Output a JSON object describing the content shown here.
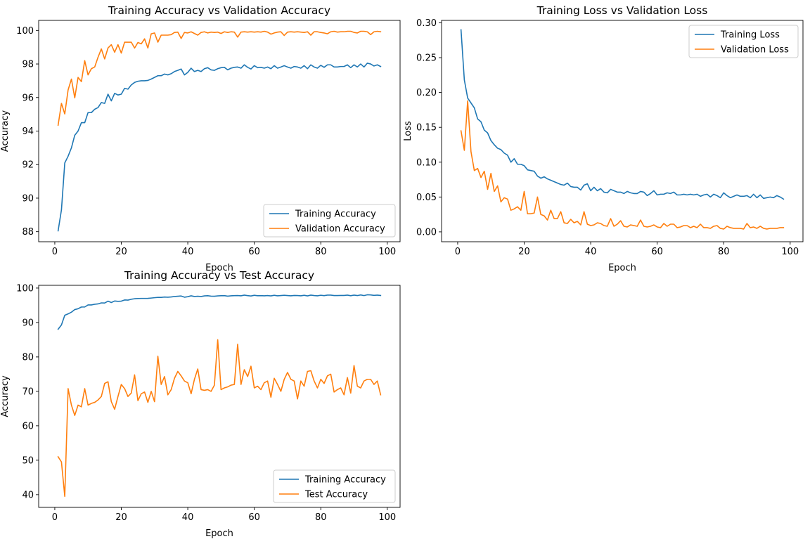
{
  "chart_data": [
    {
      "type": "line",
      "title": "Training Accuracy vs Validation Accuracy",
      "xlabel": "Epoch",
      "ylabel": "Accuracy",
      "xlim": [
        -4.85,
        103.85
      ],
      "ylim": [
        87.4,
        100.6
      ],
      "xticks": [
        0,
        20,
        40,
        60,
        80,
        100
      ],
      "yticks": [
        88,
        90,
        92,
        94,
        96,
        98,
        100
      ],
      "legend": "lower right",
      "x": [
        1,
        2,
        3,
        4,
        5,
        6,
        7,
        8,
        9,
        10,
        11,
        12,
        13,
        14,
        15,
        16,
        17,
        18,
        19,
        20,
        21,
        22,
        23,
        24,
        25,
        26,
        27,
        28,
        29,
        30,
        31,
        32,
        33,
        34,
        35,
        36,
        37,
        38,
        39,
        40,
        41,
        42,
        43,
        44,
        45,
        46,
        47,
        48,
        49,
        50,
        51,
        52,
        53,
        54,
        55,
        56,
        57,
        58,
        59,
        60,
        61,
        62,
        63,
        64,
        65,
        66,
        67,
        68,
        69,
        70,
        71,
        72,
        73,
        74,
        75,
        76,
        77,
        78,
        79,
        80,
        81,
        82,
        83,
        84,
        85,
        86,
        87,
        88,
        89,
        90,
        91,
        92,
        93,
        94,
        95,
        96,
        97,
        98
      ],
      "series": [
        {
          "name": "Training Accuracy",
          "color": "#1f77b4",
          "values": [
            88.05,
            89.3,
            92.1,
            92.5,
            93.0,
            93.75,
            94.0,
            94.5,
            94.5,
            95.1,
            95.1,
            95.3,
            95.4,
            95.7,
            95.65,
            96.2,
            95.8,
            96.25,
            96.15,
            96.2,
            96.55,
            96.5,
            96.75,
            96.9,
            96.97,
            97.0,
            97.0,
            97.02,
            97.1,
            97.2,
            97.3,
            97.3,
            97.4,
            97.35,
            97.42,
            97.55,
            97.62,
            97.7,
            97.35,
            97.5,
            97.75,
            97.55,
            97.62,
            97.55,
            97.72,
            97.78,
            97.65,
            97.62,
            97.72,
            97.78,
            97.8,
            97.65,
            97.75,
            97.8,
            97.82,
            97.75,
            97.95,
            97.8,
            97.7,
            97.9,
            97.78,
            97.8,
            97.75,
            97.82,
            97.72,
            97.9,
            97.75,
            97.82,
            97.9,
            97.82,
            97.75,
            97.85,
            97.82,
            97.75,
            97.9,
            97.72,
            97.95,
            97.82,
            97.75,
            97.92,
            97.8,
            97.95,
            97.95,
            97.82,
            97.82,
            97.85,
            97.85,
            97.95,
            97.78,
            97.95,
            97.82,
            98.0,
            97.82,
            98.05,
            98.0,
            97.88,
            97.95,
            97.85
          ]
        },
        {
          "name": "Validation Accuracy",
          "color": "#ff7f0e",
          "values": [
            94.35,
            95.65,
            95.02,
            96.45,
            97.1,
            95.98,
            97.2,
            96.95,
            98.2,
            97.35,
            97.72,
            97.82,
            98.4,
            98.9,
            98.3,
            98.95,
            99.15,
            98.7,
            99.15,
            98.65,
            99.3,
            99.3,
            99.3,
            98.95,
            99.28,
            99.2,
            99.5,
            98.95,
            99.8,
            99.85,
            99.3,
            99.72,
            99.72,
            99.72,
            99.75,
            99.88,
            99.9,
            99.52,
            99.88,
            99.85,
            99.92,
            99.82,
            99.72,
            99.88,
            99.92,
            99.85,
            99.9,
            99.88,
            99.9,
            99.82,
            99.92,
            99.88,
            99.92,
            99.9,
            99.6,
            99.9,
            99.92,
            99.9,
            99.92,
            99.9,
            99.92,
            99.9,
            99.95,
            99.9,
            99.78,
            99.85,
            99.9,
            99.92,
            99.7,
            99.9,
            99.92,
            99.9,
            99.92,
            99.9,
            99.88,
            99.92,
            99.72,
            99.92,
            99.92,
            99.88,
            99.85,
            99.8,
            99.92,
            99.95,
            99.9,
            99.92,
            99.92,
            99.95,
            99.95,
            99.88,
            99.85,
            99.95,
            99.95,
            99.92,
            99.75,
            99.92,
            99.95,
            99.92
          ]
        }
      ]
    },
    {
      "type": "line",
      "title": "Training Loss vs Validation Loss",
      "xlabel": "Epoch",
      "ylabel": "Loss",
      "xlim": [
        -4.85,
        103.85
      ],
      "ylim": [
        -0.0142,
        0.3035
      ],
      "xticks": [
        0,
        20,
        40,
        60,
        80,
        100
      ],
      "yticks": [
        0.0,
        0.05,
        0.1,
        0.15,
        0.2,
        0.25,
        0.3
      ],
      "ytick_labels": [
        "0.00",
        "0.05",
        "0.10",
        "0.15",
        "0.20",
        "0.25",
        "0.30"
      ],
      "legend": "upper right",
      "x": [
        1,
        2,
        3,
        4,
        5,
        6,
        7,
        8,
        9,
        10,
        11,
        12,
        13,
        14,
        15,
        16,
        17,
        18,
        19,
        20,
        21,
        22,
        23,
        24,
        25,
        26,
        27,
        28,
        29,
        30,
        31,
        32,
        33,
        34,
        35,
        36,
        37,
        38,
        39,
        40,
        41,
        42,
        43,
        44,
        45,
        46,
        47,
        48,
        49,
        50,
        51,
        52,
        53,
        54,
        55,
        56,
        57,
        58,
        59,
        60,
        61,
        62,
        63,
        64,
        65,
        66,
        67,
        68,
        69,
        70,
        71,
        72,
        73,
        74,
        75,
        76,
        77,
        78,
        79,
        80,
        81,
        82,
        83,
        84,
        85,
        86,
        87,
        88,
        89,
        90,
        91,
        92,
        93,
        94,
        95,
        96,
        97,
        98
      ],
      "series": [
        {
          "name": "Training Loss",
          "color": "#1f77b4",
          "values": [
            0.29,
            0.218,
            0.192,
            0.185,
            0.178,
            0.162,
            0.158,
            0.146,
            0.142,
            0.131,
            0.125,
            0.12,
            0.118,
            0.113,
            0.11,
            0.1,
            0.105,
            0.097,
            0.097,
            0.095,
            0.089,
            0.088,
            0.087,
            0.08,
            0.077,
            0.079,
            0.076,
            0.074,
            0.072,
            0.07,
            0.068,
            0.067,
            0.07,
            0.065,
            0.064,
            0.064,
            0.06,
            0.067,
            0.069,
            0.059,
            0.064,
            0.059,
            0.062,
            0.057,
            0.056,
            0.061,
            0.059,
            0.057,
            0.057,
            0.055,
            0.058,
            0.056,
            0.055,
            0.055,
            0.058,
            0.057,
            0.052,
            0.055,
            0.059,
            0.053,
            0.054,
            0.054,
            0.056,
            0.055,
            0.057,
            0.053,
            0.053,
            0.054,
            0.053,
            0.054,
            0.053,
            0.054,
            0.051,
            0.053,
            0.054,
            0.05,
            0.054,
            0.052,
            0.049,
            0.056,
            0.052,
            0.049,
            0.051,
            0.053,
            0.051,
            0.051,
            0.052,
            0.049,
            0.054,
            0.049,
            0.053,
            0.048,
            0.049,
            0.05,
            0.049,
            0.052,
            0.05,
            0.047
          ]
        },
        {
          "name": "Validation Loss",
          "color": "#ff7f0e",
          "values": [
            0.145,
            0.117,
            0.188,
            0.115,
            0.088,
            0.091,
            0.078,
            0.087,
            0.061,
            0.084,
            0.058,
            0.066,
            0.043,
            0.049,
            0.047,
            0.031,
            0.033,
            0.036,
            0.031,
            0.058,
            0.026,
            0.026,
            0.027,
            0.05,
            0.025,
            0.023,
            0.017,
            0.031,
            0.019,
            0.019,
            0.029,
            0.013,
            0.012,
            0.018,
            0.013,
            0.015,
            0.01,
            0.029,
            0.011,
            0.009,
            0.01,
            0.013,
            0.012,
            0.009,
            0.008,
            0.019,
            0.008,
            0.011,
            0.016,
            0.008,
            0.007,
            0.01,
            0.009,
            0.008,
            0.017,
            0.008,
            0.007,
            0.008,
            0.01,
            0.007,
            0.006,
            0.012,
            0.008,
            0.011,
            0.011,
            0.006,
            0.007,
            0.009,
            0.009,
            0.006,
            0.008,
            0.006,
            0.011,
            0.006,
            0.006,
            0.005,
            0.008,
            0.009,
            0.005,
            0.004,
            0.008,
            0.006,
            0.005,
            0.005,
            0.005,
            0.004,
            0.012,
            0.006,
            0.007,
            0.005,
            0.008,
            0.005,
            0.004,
            0.005,
            0.005,
            0.005,
            0.006,
            0.006
          ]
        }
      ]
    },
    {
      "type": "line",
      "title": "Training Accuracy vs Test Accuracy",
      "xlabel": "Epoch",
      "ylabel": "Accuracy",
      "xlim": [
        -4.85,
        103.85
      ],
      "ylim": [
        36.3,
        100.8
      ],
      "xticks": [
        0,
        20,
        40,
        60,
        80,
        100
      ],
      "yticks": [
        40,
        50,
        60,
        70,
        80,
        90,
        100
      ],
      "legend": "lower right",
      "x": [
        1,
        2,
        3,
        4,
        5,
        6,
        7,
        8,
        9,
        10,
        11,
        12,
        13,
        14,
        15,
        16,
        17,
        18,
        19,
        20,
        21,
        22,
        23,
        24,
        25,
        26,
        27,
        28,
        29,
        30,
        31,
        32,
        33,
        34,
        35,
        36,
        37,
        38,
        39,
        40,
        41,
        42,
        43,
        44,
        45,
        46,
        47,
        48,
        49,
        50,
        51,
        52,
        53,
        54,
        55,
        56,
        57,
        58,
        59,
        60,
        61,
        62,
        63,
        64,
        65,
        66,
        67,
        68,
        69,
        70,
        71,
        72,
        73,
        74,
        75,
        76,
        77,
        78,
        79,
        80,
        81,
        82,
        83,
        84,
        85,
        86,
        87,
        88,
        89,
        90,
        91,
        92,
        93,
        94,
        95,
        96,
        97,
        98
      ],
      "series": [
        {
          "name": "Training Accuracy",
          "color": "#1f77b4",
          "values": [
            88.05,
            89.3,
            92.1,
            92.5,
            93.0,
            93.75,
            94.0,
            94.5,
            94.5,
            95.1,
            95.1,
            95.3,
            95.4,
            95.7,
            95.65,
            96.2,
            95.8,
            96.25,
            96.15,
            96.2,
            96.55,
            96.5,
            96.75,
            96.9,
            96.97,
            97.0,
            97.0,
            97.02,
            97.1,
            97.2,
            97.3,
            97.3,
            97.4,
            97.35,
            97.42,
            97.55,
            97.62,
            97.7,
            97.35,
            97.5,
            97.75,
            97.55,
            97.62,
            97.55,
            97.72,
            97.78,
            97.65,
            97.62,
            97.72,
            97.78,
            97.8,
            97.65,
            97.75,
            97.8,
            97.82,
            97.75,
            97.95,
            97.8,
            97.7,
            97.9,
            97.78,
            97.8,
            97.75,
            97.82,
            97.72,
            97.9,
            97.75,
            97.82,
            97.9,
            97.82,
            97.75,
            97.85,
            97.82,
            97.75,
            97.9,
            97.72,
            97.95,
            97.82,
            97.75,
            97.92,
            97.8,
            97.95,
            97.95,
            97.82,
            97.82,
            97.85,
            97.85,
            97.95,
            97.78,
            97.95,
            97.82,
            98.0,
            97.82,
            98.05,
            98.0,
            97.88,
            97.95,
            97.85
          ]
        },
        {
          "name": "Test Accuracy",
          "color": "#ff7f0e",
          "values": [
            51.0,
            49.5,
            39.5,
            70.8,
            66.0,
            63.0,
            66.0,
            65.5,
            70.8,
            66.0,
            66.5,
            66.8,
            67.5,
            68.5,
            72.3,
            72.8,
            67.0,
            64.8,
            68.5,
            72.0,
            70.8,
            68.5,
            69.5,
            74.8,
            67.3,
            69.3,
            69.8,
            66.8,
            70.0,
            67.0,
            80.2,
            72.0,
            74.3,
            69.0,
            70.5,
            73.8,
            75.8,
            74.5,
            73.0,
            72.5,
            69.3,
            73.5,
            76.5,
            70.5,
            70.3,
            70.5,
            70.0,
            71.8,
            85.0,
            70.5,
            71.0,
            71.3,
            71.8,
            72.0,
            83.7,
            72.0,
            76.3,
            74.3,
            77.3,
            71.0,
            71.5,
            70.5,
            72.5,
            73.0,
            68.3,
            73.8,
            72.0,
            70.0,
            73.5,
            75.5,
            73.5,
            73.0,
            67.8,
            73.0,
            71.5,
            75.8,
            76.0,
            73.0,
            71.0,
            73.5,
            72.3,
            74.5,
            75.0,
            69.8,
            70.5,
            71.0,
            69.0,
            74.0,
            69.5,
            77.5,
            71.5,
            71.0,
            73.0,
            73.5,
            73.5,
            72.0,
            73.0,
            69.0
          ]
        }
      ]
    }
  ]
}
